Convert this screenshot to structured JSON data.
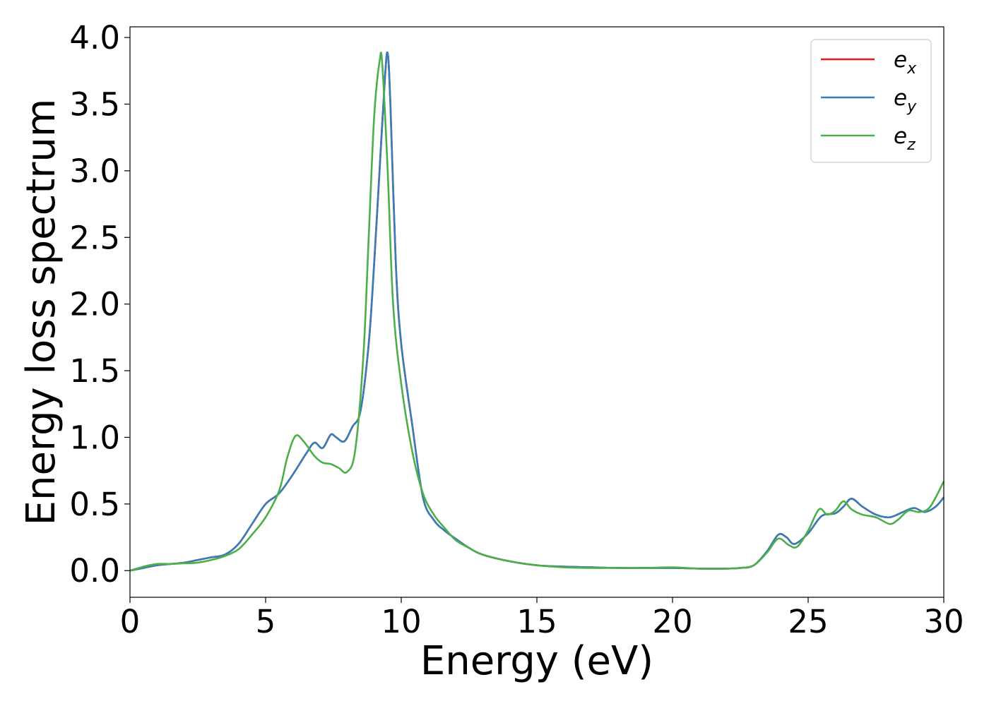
{
  "chart_data": {
    "type": "line",
    "title": "",
    "xlabel": "Energy (eV)",
    "ylabel": "Energy loss spectrum",
    "xlim": [
      0,
      30
    ],
    "ylim": [
      -0.2,
      4.08
    ],
    "xticks": [
      0,
      5,
      10,
      15,
      20,
      25,
      30
    ],
    "xtick_labels": [
      "0",
      "5",
      "10",
      "15",
      "20",
      "25",
      "30"
    ],
    "yticks": [
      0.0,
      0.5,
      1.0,
      1.5,
      2.0,
      2.5,
      3.0,
      3.5,
      4.0
    ],
    "ytick_labels": [
      "0.0",
      "0.5",
      "1.0",
      "1.5",
      "2.0",
      "2.5",
      "3.0",
      "3.5",
      "4.0"
    ],
    "grid": false,
    "legend_position": "top-right",
    "series": [
      {
        "name": "e_x",
        "label_base": "e",
        "label_sub": "x",
        "color": "#e41a1c",
        "x": [
          0,
          0.5,
          1,
          1.5,
          2,
          2.5,
          3,
          3.5,
          4,
          4.5,
          5,
          5.5,
          6,
          6.5,
          6.8,
          7.1,
          7.4,
          7.6,
          7.9,
          8.2,
          8.5,
          8.8,
          9.0,
          9.2,
          9.4,
          9.5,
          9.6,
          9.8,
          10,
          10.4,
          10.8,
          11.2,
          11.6,
          12,
          12.5,
          13,
          14,
          15,
          16,
          17,
          18,
          19,
          20,
          21,
          22,
          22.5,
          23,
          23.5,
          23.9,
          24.2,
          24.5,
          25,
          25.5,
          26,
          26.3,
          26.6,
          27,
          27.5,
          28,
          28.5,
          28.9,
          29.3,
          29.7,
          30
        ],
        "y": [
          0,
          0.02,
          0.04,
          0.05,
          0.06,
          0.08,
          0.1,
          0.12,
          0.2,
          0.35,
          0.5,
          0.58,
          0.72,
          0.88,
          0.96,
          0.92,
          1.02,
          1.0,
          0.97,
          1.08,
          1.2,
          1.7,
          2.3,
          3.0,
          3.7,
          3.88,
          3.5,
          2.3,
          1.7,
          1.1,
          0.55,
          0.38,
          0.3,
          0.24,
          0.17,
          0.12,
          0.07,
          0.04,
          0.03,
          0.025,
          0.02,
          0.02,
          0.02,
          0.015,
          0.015,
          0.02,
          0.04,
          0.15,
          0.27,
          0.25,
          0.2,
          0.28,
          0.41,
          0.43,
          0.48,
          0.54,
          0.48,
          0.42,
          0.4,
          0.44,
          0.47,
          0.44,
          0.48,
          0.55
        ]
      },
      {
        "name": "e_y",
        "label_base": "e",
        "label_sub": "y",
        "color": "#377eb8",
        "x": [
          0,
          0.5,
          1,
          1.5,
          2,
          2.5,
          3,
          3.5,
          4,
          4.5,
          5,
          5.5,
          6,
          6.5,
          6.8,
          7.1,
          7.4,
          7.6,
          7.9,
          8.2,
          8.5,
          8.8,
          9.0,
          9.2,
          9.4,
          9.5,
          9.6,
          9.8,
          10,
          10.4,
          10.8,
          11.2,
          11.6,
          12,
          12.5,
          13,
          14,
          15,
          16,
          17,
          18,
          19,
          20,
          21,
          22,
          22.5,
          23,
          23.5,
          23.9,
          24.2,
          24.5,
          25,
          25.5,
          26,
          26.3,
          26.6,
          27,
          27.5,
          28,
          28.5,
          28.9,
          29.3,
          29.7,
          30
        ],
        "y": [
          0,
          0.02,
          0.04,
          0.05,
          0.06,
          0.08,
          0.1,
          0.12,
          0.2,
          0.35,
          0.5,
          0.58,
          0.72,
          0.88,
          0.96,
          0.92,
          1.02,
          1.0,
          0.97,
          1.08,
          1.2,
          1.7,
          2.3,
          3.0,
          3.7,
          3.88,
          3.5,
          2.3,
          1.7,
          1.1,
          0.55,
          0.38,
          0.3,
          0.24,
          0.17,
          0.12,
          0.07,
          0.04,
          0.03,
          0.025,
          0.02,
          0.02,
          0.02,
          0.015,
          0.015,
          0.02,
          0.04,
          0.15,
          0.27,
          0.25,
          0.2,
          0.28,
          0.41,
          0.43,
          0.48,
          0.54,
          0.48,
          0.42,
          0.4,
          0.44,
          0.47,
          0.44,
          0.48,
          0.55
        ]
      },
      {
        "name": "e_z",
        "label_base": "e",
        "label_sub": "z",
        "color": "#4daf4a",
        "x": [
          0,
          0.5,
          1,
          1.5,
          2,
          2.5,
          3,
          3.5,
          4,
          4.5,
          5,
          5.5,
          5.8,
          6.1,
          6.4,
          6.8,
          7.1,
          7.4,
          7.7,
          8.0,
          8.3,
          8.6,
          8.8,
          9.0,
          9.2,
          9.3,
          9.5,
          9.7,
          10,
          10.4,
          10.8,
          11.2,
          11.6,
          12,
          12.5,
          13,
          14,
          15,
          16,
          17,
          18,
          19,
          20,
          21,
          22,
          22.5,
          23,
          23.5,
          23.9,
          24.3,
          24.6,
          25,
          25.4,
          25.7,
          26,
          26.3,
          26.6,
          27,
          27.5,
          28,
          28.3,
          28.7,
          29.1,
          29.5,
          30
        ],
        "y": [
          0,
          0.03,
          0.05,
          0.05,
          0.055,
          0.06,
          0.08,
          0.11,
          0.16,
          0.27,
          0.4,
          0.6,
          0.85,
          1.01,
          0.97,
          0.86,
          0.81,
          0.8,
          0.77,
          0.74,
          0.9,
          1.6,
          2.5,
          3.4,
          3.82,
          3.8,
          3.0,
          2.0,
          1.4,
          0.9,
          0.58,
          0.42,
          0.32,
          0.23,
          0.17,
          0.12,
          0.07,
          0.04,
          0.025,
          0.02,
          0.02,
          0.02,
          0.025,
          0.015,
          0.015,
          0.02,
          0.04,
          0.14,
          0.24,
          0.19,
          0.18,
          0.3,
          0.46,
          0.42,
          0.45,
          0.52,
          0.46,
          0.42,
          0.4,
          0.35,
          0.38,
          0.45,
          0.44,
          0.48,
          0.67
        ]
      }
    ]
  }
}
